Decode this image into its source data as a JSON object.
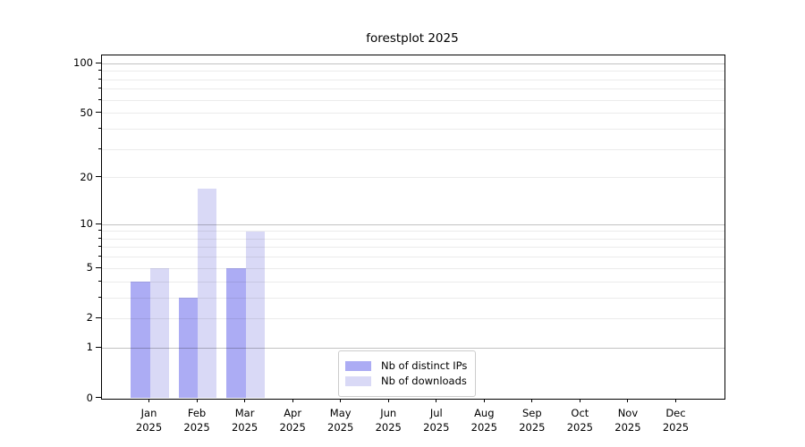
{
  "chart_data": {
    "type": "bar",
    "title": "forestplot 2025",
    "categories": [
      "Jan",
      "Feb",
      "Mar",
      "Apr",
      "May",
      "Jun",
      "Jul",
      "Aug",
      "Sep",
      "Oct",
      "Nov",
      "Dec"
    ],
    "x_tick_second_line": "2025",
    "series": [
      {
        "name": "Nb of distinct IPs",
        "color": "#acacf4",
        "values": [
          4,
          3,
          5,
          0,
          0,
          0,
          0,
          0,
          0,
          0,
          0,
          0
        ]
      },
      {
        "name": "Nb of downloads",
        "color": "#d9d9f6",
        "values": [
          5,
          17,
          9,
          0,
          0,
          0,
          0,
          0,
          0,
          0,
          0,
          0
        ]
      }
    ],
    "y_axis": {
      "scale": "log10(1+v)",
      "major_ticks": [
        0,
        1,
        2,
        5,
        10,
        20,
        50,
        100
      ],
      "minor_ticks": [
        3,
        4,
        6,
        7,
        8,
        9,
        30,
        40,
        60,
        70,
        80,
        90
      ],
      "ylim": [
        0,
        113
      ]
    },
    "xlabel": "",
    "ylabel": "",
    "grid": true,
    "legend_position": "lower center",
    "colors": {
      "major_grid": "rgba(0,0,0,0.24)",
      "minor_grid": "rgba(0,0,0,0.08)",
      "axis": "#000000"
    }
  }
}
